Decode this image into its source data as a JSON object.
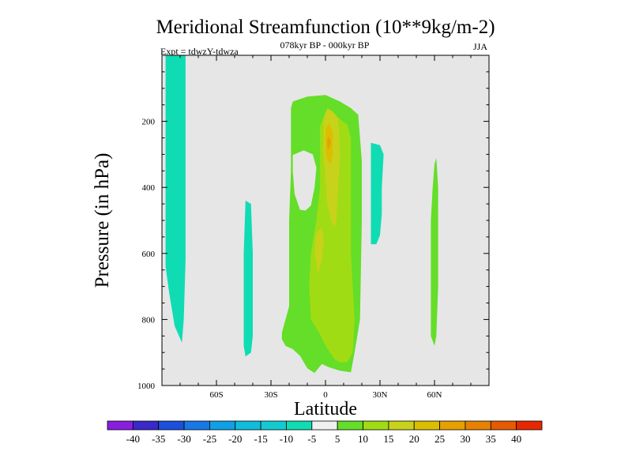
{
  "chart_data": {
    "type": "contour",
    "title": "Meridional Streamfunction (10**9kg/m-2)",
    "subtitle_left": "Expt = tdwzY-tdwza",
    "subtitle_center": "078kyr BP - 000kyr BP",
    "subtitle_right": "JJA",
    "xlabel": "Latitude",
    "ylabel": "Pressure (in hPa)",
    "xlim": [
      -90,
      90
    ],
    "ylim": [
      1000,
      0
    ],
    "x_ticks": [
      {
        "value": -60,
        "label": "60S"
      },
      {
        "value": -30,
        "label": "30S"
      },
      {
        "value": 0,
        "label": "0"
      },
      {
        "value": 30,
        "label": "30N"
      },
      {
        "value": 60,
        "label": "60N"
      }
    ],
    "y_ticks": [
      {
        "value": 200,
        "label": "200"
      },
      {
        "value": 400,
        "label": "400"
      },
      {
        "value": 600,
        "label": "600"
      },
      {
        "value": 800,
        "label": "800"
      },
      {
        "value": 1000,
        "label": "1000"
      }
    ],
    "background_color": "#e6e6e6",
    "colorbar": {
      "colors": [
        "#8a1ee0",
        "#3a28c8",
        "#1a50dc",
        "#1878e6",
        "#10a0e6",
        "#10bcdc",
        "#14cad2",
        "#10dcb4",
        "#f0f0f0",
        "#64de28",
        "#a0dc14",
        "#c8d21a",
        "#dcbe00",
        "#e6a000",
        "#e68200",
        "#e65a00",
        "#e62800"
      ],
      "labels": [
        "-40",
        "-35",
        "-30",
        "-25",
        "-20",
        "-15",
        "-10",
        "-5",
        "5",
        "10",
        "15",
        "20",
        "25",
        "30",
        "35",
        "40"
      ]
    },
    "regions": [
      {
        "name": "neg-sh-highlat",
        "level": "-10 to -5",
        "color": "#10dcb4",
        "polygon": [
          [
            -88,
            0
          ],
          [
            -77,
            0
          ],
          [
            -77,
            620
          ],
          [
            -78,
            800
          ],
          [
            -79,
            870
          ],
          [
            -83,
            820
          ],
          [
            -86,
            720
          ],
          [
            -88,
            640
          ]
        ]
      },
      {
        "name": "neg-sh-midlat",
        "level": "-10 to -5",
        "color": "#10dcb4",
        "polygon": [
          [
            -44,
            440
          ],
          [
            -41,
            450
          ],
          [
            -40,
            600
          ],
          [
            -40,
            850
          ],
          [
            -41,
            900
          ],
          [
            -44,
            912
          ],
          [
            -45,
            880
          ],
          [
            -45,
            600
          ]
        ]
      },
      {
        "name": "pos-main-cell",
        "level": "5 to 10",
        "color": "#64de28",
        "polygon": [
          [
            -18,
            140
          ],
          [
            -10,
            125
          ],
          [
            0,
            120
          ],
          [
            8,
            140
          ],
          [
            14,
            160
          ],
          [
            18,
            180
          ],
          [
            20,
            320
          ],
          [
            20,
            500
          ],
          [
            19,
            800
          ],
          [
            16,
            900
          ],
          [
            14,
            960
          ],
          [
            8,
            955
          ],
          [
            2,
            945
          ],
          [
            -2,
            935
          ],
          [
            -6,
            962
          ],
          [
            -10,
            948
          ],
          [
            -14,
            910
          ],
          [
            -18,
            890
          ],
          [
            -22,
            880
          ],
          [
            -24,
            860
          ],
          [
            -24,
            840
          ],
          [
            -20,
            760
          ],
          [
            -20,
            500
          ],
          [
            -19,
            350
          ],
          [
            -19,
            160
          ]
        ],
        "hole": [
          [
            -18,
            302
          ],
          [
            -12,
            288
          ],
          [
            -7,
            300
          ],
          [
            -5,
            340
          ],
          [
            -6,
            400
          ],
          [
            -8,
            455
          ],
          [
            -11,
            470
          ],
          [
            -14,
            468
          ],
          [
            -17,
            420
          ],
          [
            -18,
            350
          ]
        ]
      },
      {
        "name": "pos-inner",
        "level": "10 to 15",
        "color": "#a0dc14",
        "polygon": [
          [
            -3,
            215
          ],
          [
            0,
            170
          ],
          [
            6,
            185
          ],
          [
            12,
            210
          ],
          [
            14,
            250
          ],
          [
            14,
            400
          ],
          [
            14,
            600
          ],
          [
            16,
            800
          ],
          [
            15,
            900
          ],
          [
            12,
            930
          ],
          [
            8,
            930
          ],
          [
            5,
            920
          ],
          [
            0,
            880
          ],
          [
            -3,
            845
          ],
          [
            -8,
            800
          ],
          [
            -9,
            700
          ],
          [
            -8,
            600
          ],
          [
            -5,
            500
          ],
          [
            -3,
            400
          ]
        ]
      },
      {
        "name": "pos-core",
        "level": "15 to 20",
        "color": "#c8d21a",
        "polygon": [
          [
            -1,
            200
          ],
          [
            1,
            160
          ],
          [
            4,
            170
          ],
          [
            7,
            190
          ],
          [
            8,
            300
          ],
          [
            7,
            400
          ],
          [
            6,
            500
          ],
          [
            5,
            520
          ],
          [
            3,
            500
          ],
          [
            1,
            450
          ],
          [
            -1,
            300
          ]
        ]
      },
      {
        "name": "pos-core-lower",
        "level": "15 to 20",
        "color": "#c8d21a",
        "polygon": [
          [
            -5,
            540
          ],
          [
            -2,
            520
          ],
          [
            -1,
            560
          ],
          [
            -2,
            620
          ],
          [
            -4,
            660
          ],
          [
            -6,
            600
          ]
        ]
      },
      {
        "name": "pos-core-strong",
        "level": "20 to 25",
        "color": "#dcbe00",
        "polygon": [
          [
            0,
            225
          ],
          [
            2,
            205
          ],
          [
            4,
            230
          ],
          [
            4,
            300
          ],
          [
            3,
            330
          ],
          [
            1,
            320
          ],
          [
            0,
            290
          ]
        ]
      },
      {
        "name": "pos-core-max",
        "level": "25 to 30",
        "color": "#e6a000",
        "polygon": [
          [
            1,
            255
          ],
          [
            2,
            245
          ],
          [
            3,
            265
          ],
          [
            2,
            285
          ],
          [
            1,
            280
          ]
        ]
      },
      {
        "name": "neg-nh-subtropics",
        "level": "-10 to -5",
        "color": "#10dcb4",
        "polygon": [
          [
            25,
            265
          ],
          [
            30,
            272
          ],
          [
            32,
            300
          ],
          [
            31,
            400
          ],
          [
            31,
            480
          ],
          [
            30,
            545
          ],
          [
            28,
            572
          ],
          [
            25,
            572
          ],
          [
            25,
            400
          ]
        ]
      },
      {
        "name": "pos-nh-highlat",
        "level": "5 to 10",
        "color": "#64de28",
        "polygon": [
          [
            61,
            310
          ],
          [
            62,
            400
          ],
          [
            62,
            700
          ],
          [
            61,
            850
          ],
          [
            60,
            880
          ],
          [
            58,
            850
          ],
          [
            58,
            500
          ],
          [
            59,
            400
          ],
          [
            60,
            330
          ]
        ]
      }
    ]
  }
}
